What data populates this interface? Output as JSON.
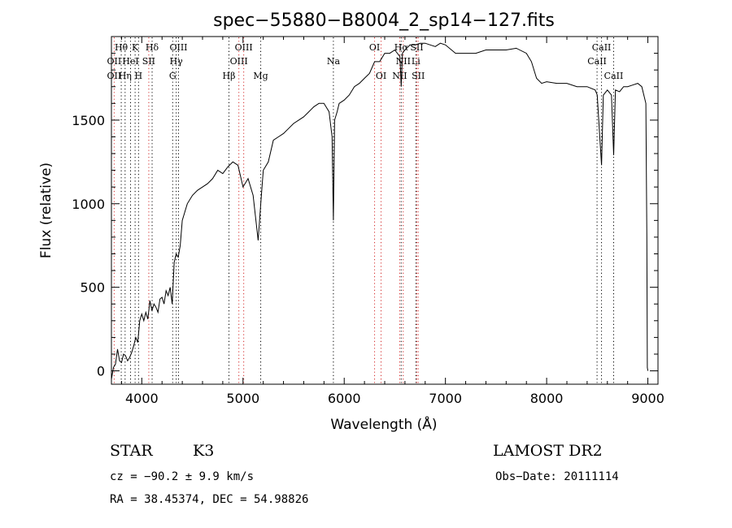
{
  "chart_data": {
    "type": "line",
    "title": "spec−55880−B8004_2_sp14−127.fits",
    "xlabel": "Wavelength (Å)",
    "ylabel": "Flux (relative)",
    "xlim": [
      3700,
      9100
    ],
    "ylim": [
      -80,
      2000
    ],
    "x_ticks": [
      4000,
      5000,
      6000,
      7000,
      8000,
      9000
    ],
    "y_ticks": [
      0,
      500,
      1000,
      1500
    ],
    "grid": false,
    "series": [
      {
        "x": [
          3700,
          3720,
          3740,
          3760,
          3780,
          3800,
          3820,
          3840,
          3860,
          3880,
          3900,
          3920,
          3940,
          3960,
          3980,
          4000,
          4020,
          4040,
          4060,
          4080,
          4100,
          4120,
          4140,
          4160,
          4180,
          4200,
          4220,
          4240,
          4260,
          4280,
          4300,
          4320,
          4340,
          4360,
          4380,
          4400,
          4450,
          4500,
          4550,
          4600,
          4650,
          4700,
          4750,
          4800,
          4850,
          4900,
          4950,
          5000,
          5050,
          5100,
          5150,
          5175,
          5200,
          5250,
          5300,
          5350,
          5400,
          5450,
          5500,
          5550,
          5600,
          5650,
          5700,
          5750,
          5800,
          5850,
          5880,
          5893,
          5905,
          5930,
          5950,
          6000,
          6050,
          6100,
          6150,
          6200,
          6250,
          6300,
          6350,
          6400,
          6450,
          6500,
          6550,
          6563,
          6575,
          6600,
          6650,
          6700,
          6750,
          6800,
          6850,
          6900,
          6950,
          7000,
          7100,
          7200,
          7300,
          7400,
          7500,
          7600,
          7700,
          7800,
          7850,
          7900,
          7950,
          8000,
          8100,
          8200,
          8300,
          8400,
          8480,
          8500,
          8520,
          8542,
          8560,
          8600,
          8640,
          8662,
          8680,
          8720,
          8760,
          8800,
          8850,
          8900,
          8940,
          8960,
          8980,
          8990,
          8995,
          9000
        ],
        "y": [
          -50,
          20,
          40,
          130,
          60,
          50,
          100,
          90,
          60,
          80,
          110,
          150,
          200,
          170,
          300,
          340,
          300,
          350,
          310,
          420,
          360,
          400,
          380,
          350,
          430,
          440,
          400,
          480,
          450,
          500,
          400,
          650,
          700,
          680,
          750,
          900,
          1000,
          1050,
          1080,
          1100,
          1120,
          1150,
          1200,
          1180,
          1220,
          1250,
          1230,
          1100,
          1150,
          1050,
          780,
          1000,
          1200,
          1250,
          1380,
          1400,
          1420,
          1450,
          1480,
          1500,
          1520,
          1550,
          1580,
          1600,
          1600,
          1550,
          1400,
          900,
          1500,
          1550,
          1600,
          1620,
          1650,
          1700,
          1720,
          1750,
          1780,
          1850,
          1850,
          1900,
          1900,
          1920,
          1880,
          1700,
          1900,
          1920,
          1950,
          1950,
          1960,
          1960,
          1950,
          1940,
          1960,
          1950,
          1900,
          1900,
          1900,
          1920,
          1920,
          1920,
          1930,
          1900,
          1850,
          1750,
          1720,
          1730,
          1720,
          1720,
          1700,
          1700,
          1680,
          1650,
          1450,
          1230,
          1650,
          1680,
          1650,
          1290,
          1680,
          1670,
          1700,
          1700,
          1710,
          1720,
          1700,
          1650,
          1600,
          800,
          20,
          0
        ]
      }
    ],
    "line_labels": [
      {
        "text": "Hθ",
        "wl": 3797,
        "row": 1,
        "color": "black"
      },
      {
        "text": "K",
        "wl": 3934,
        "row": 1,
        "color": "black"
      },
      {
        "text": "Hδ",
        "wl": 4102,
        "row": 1,
        "color": "black"
      },
      {
        "text": "OIII",
        "wl": 4363,
        "row": 1,
        "color": "black"
      },
      {
        "text": "OIII",
        "wl": 5007,
        "row": 1,
        "color": "red"
      },
      {
        "text": "OI",
        "wl": 6300,
        "row": 1,
        "color": "red"
      },
      {
        "text": "Hα",
        "wl": 6563,
        "row": 1,
        "color": "black"
      },
      {
        "text": "SII",
        "wl": 6717,
        "row": 1,
        "color": "red"
      },
      {
        "text": "CaII",
        "wl": 8542,
        "row": 1,
        "color": "black"
      },
      {
        "text": "OII",
        "wl": 3727,
        "row": 2,
        "color": "red"
      },
      {
        "text": "HeI",
        "wl": 3889,
        "row": 2,
        "color": "black"
      },
      {
        "text": "SII",
        "wl": 4069,
        "row": 2,
        "color": "red"
      },
      {
        "text": "Hγ",
        "wl": 4340,
        "row": 2,
        "color": "black"
      },
      {
        "text": "OIII",
        "wl": 4959,
        "row": 2,
        "color": "red"
      },
      {
        "text": "Na",
        "wl": 5893,
        "row": 2,
        "color": "black"
      },
      {
        "text": "NII",
        "wl": 6583,
        "row": 2,
        "color": "red"
      },
      {
        "text": "Li",
        "wl": 6708,
        "row": 2,
        "color": "black"
      },
      {
        "text": "CaII",
        "wl": 8498,
        "row": 2,
        "color": "black"
      },
      {
        "text": "OII",
        "wl": 3727,
        "row": 3,
        "color": "red"
      },
      {
        "text": "Hη",
        "wl": 3835,
        "row": 3,
        "color": "black"
      },
      {
        "text": "H",
        "wl": 3968,
        "row": 3,
        "color": "black"
      },
      {
        "text": "G",
        "wl": 4305,
        "row": 3,
        "color": "black"
      },
      {
        "text": "Hβ",
        "wl": 4861,
        "row": 3,
        "color": "black"
      },
      {
        "text": "Mg",
        "wl": 5175,
        "row": 3,
        "color": "black"
      },
      {
        "text": "OI",
        "wl": 6364,
        "row": 3,
        "color": "red"
      },
      {
        "text": "NII",
        "wl": 6548,
        "row": 3,
        "color": "red"
      },
      {
        "text": "SII",
        "wl": 6731,
        "row": 3,
        "color": "red"
      },
      {
        "text": "CaII",
        "wl": 8662,
        "row": 3,
        "color": "black"
      }
    ]
  },
  "footer": {
    "object_class": "STAR",
    "subclass": "K3",
    "survey": "LAMOST DR2",
    "cz": "cz = −90.2 ± 9.9 km/s",
    "obs_date": "Obs−Date: 20111114",
    "coords": "RA =  38.45374, DEC =  54.98826"
  }
}
